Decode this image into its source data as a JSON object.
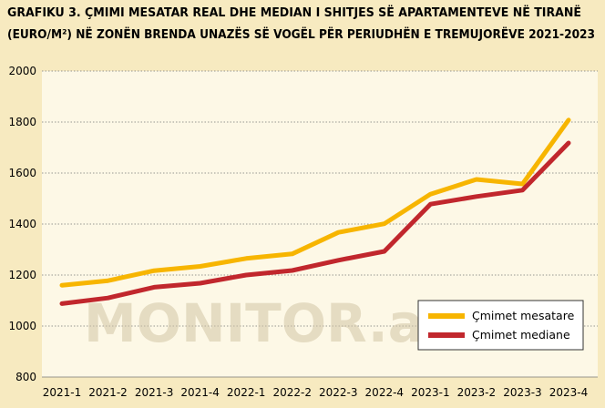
{
  "chart_data": {
    "type": "line",
    "title_lines": [
      "GRAFIKU 3. ÇMIMI MESATAR REAL DHE MEDIAN I SHITJES SË APARTAMENTEVE NË TIRANË",
      "(EURO/M²) NË ZONËN BRENDA UNAZËS SË VOGËL PËR PERIUDHËN E TREMUJORËVE 2021-2023"
    ],
    "categories": [
      "2021-1",
      "2021-2",
      "2021-3",
      "2021-4",
      "2022-1",
      "2022-2",
      "2022-3",
      "2022-4",
      "2023-1",
      "2023-2",
      "2023-3",
      "2023-4"
    ],
    "ylim": [
      800,
      2000
    ],
    "yticks": [
      800,
      1000,
      1200,
      1400,
      1600,
      1800,
      2000
    ],
    "grid": true,
    "legend_position": "bottom-right",
    "series": [
      {
        "name": "Çmimet mesatare",
        "color": "#f7b500",
        "values": [
          1160,
          1178,
          1217,
          1234,
          1265,
          1283,
          1367,
          1401,
          1517,
          1575,
          1557,
          1808
        ]
      },
      {
        "name": "Çmimet mediane",
        "color": "#c1272d",
        "values": [
          1088,
          1110,
          1152,
          1168,
          1200,
          1218,
          1258,
          1293,
          1478,
          1508,
          1533,
          1718
        ]
      }
    ],
    "watermark": "MONITOR.al"
  }
}
